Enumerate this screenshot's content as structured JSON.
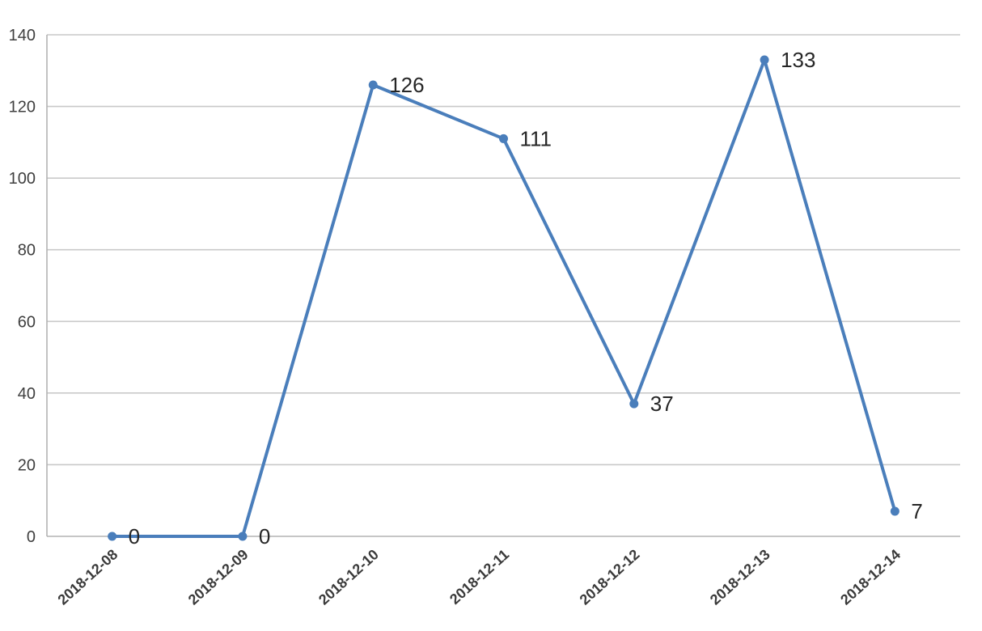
{
  "chart_data": {
    "type": "line",
    "title": "",
    "xlabel": "",
    "ylabel": "",
    "categories": [
      "2018-12-08",
      "2018-12-09",
      "2018-12-10",
      "2018-12-11",
      "2018-12-12",
      "2018-12-13",
      "2018-12-14"
    ],
    "series": [
      {
        "name": "",
        "values": [
          0,
          0,
          126,
          111,
          37,
          133,
          7
        ],
        "data_labels": [
          "0",
          "0",
          "126",
          "111",
          "37",
          "133",
          "7"
        ]
      }
    ],
    "ylim": [
      0,
      140
    ],
    "ytick_step": 20,
    "ytick_labels": [
      "0",
      "20",
      "40",
      "60",
      "80",
      "100",
      "120",
      "140"
    ],
    "grid": true,
    "legend": false,
    "x_label_rotation_deg": -42,
    "colors": {
      "line": "#4a7ebb",
      "marker": "#4a7ebb",
      "gridline": "#c9c9c9",
      "axis": "#b3b3b3",
      "tick_label": "#3f3f3f",
      "data_label": "#262626",
      "background": "#ffffff"
    }
  }
}
